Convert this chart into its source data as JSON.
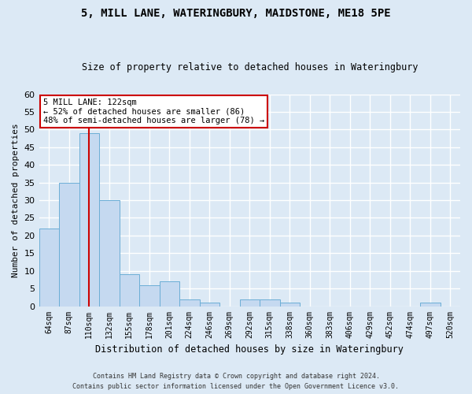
{
  "title1": "5, MILL LANE, WATERINGBURY, MAIDSTONE, ME18 5PE",
  "title2": "Size of property relative to detached houses in Wateringbury",
  "xlabel": "Distribution of detached houses by size in Wateringbury",
  "ylabel": "Number of detached properties",
  "categories": [
    "64sqm",
    "87sqm",
    "110sqm",
    "132sqm",
    "155sqm",
    "178sqm",
    "201sqm",
    "224sqm",
    "246sqm",
    "269sqm",
    "292sqm",
    "315sqm",
    "338sqm",
    "360sqm",
    "383sqm",
    "406sqm",
    "429sqm",
    "452sqm",
    "474sqm",
    "497sqm",
    "520sqm"
  ],
  "values": [
    22,
    35,
    49,
    30,
    9,
    6,
    7,
    2,
    1,
    0,
    2,
    2,
    1,
    0,
    0,
    0,
    0,
    0,
    0,
    1,
    0
  ],
  "bar_color": "#c5d9f0",
  "bar_edge_color": "#6baed6",
  "vline_index": 2,
  "vline_color": "#cc0000",
  "ylim": [
    0,
    60
  ],
  "yticks": [
    0,
    5,
    10,
    15,
    20,
    25,
    30,
    35,
    40,
    45,
    50,
    55,
    60
  ],
  "annotation_text": "5 MILL LANE: 122sqm\n← 52% of detached houses are smaller (86)\n48% of semi-detached houses are larger (78) →",
  "annotation_box_color": "#ffffff",
  "annotation_box_edge": "#cc0000",
  "footer1": "Contains HM Land Registry data © Crown copyright and database right 2024.",
  "footer2": "Contains public sector information licensed under the Open Government Licence v3.0.",
  "bg_color": "#dce9f5",
  "grid_color": "#ffffff"
}
